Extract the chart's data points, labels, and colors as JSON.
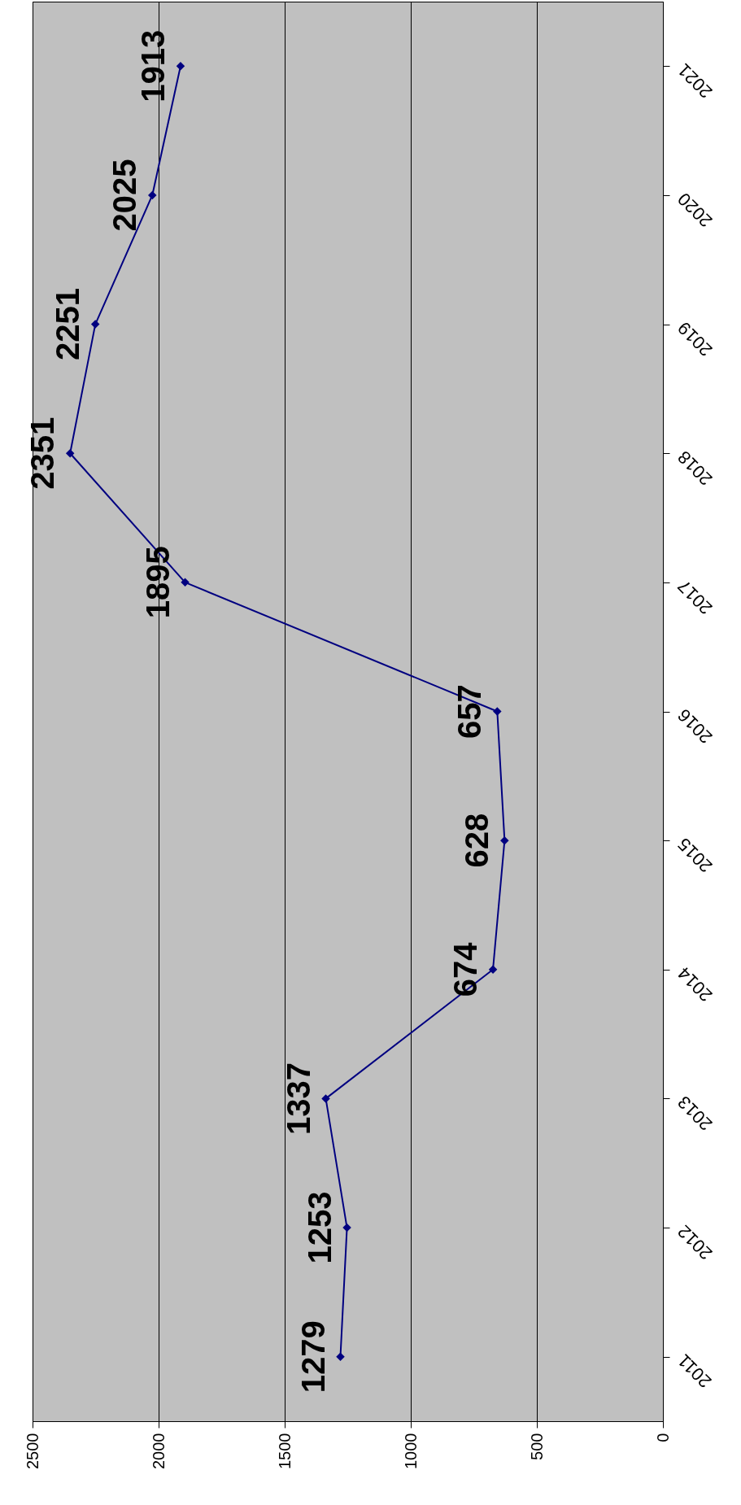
{
  "chart_data": {
    "type": "line",
    "orientation": "horizontal",
    "categories": [
      "2021",
      "2020",
      "2019",
      "2018",
      "2017",
      "2016",
      "2015",
      "2014",
      "2013",
      "2012",
      "2011"
    ],
    "series": [
      {
        "color": "#000080",
        "values": [
          1913,
          2025,
          2251,
          2351,
          1895,
          657,
          628,
          674,
          1337,
          1253,
          1279
        ]
      }
    ],
    "xlim": [
      2500,
      0
    ],
    "xticks": [
      2500,
      2000,
      1500,
      1000,
      500,
      0
    ],
    "grid": "x",
    "marker": "diamond",
    "data_labels": true
  }
}
